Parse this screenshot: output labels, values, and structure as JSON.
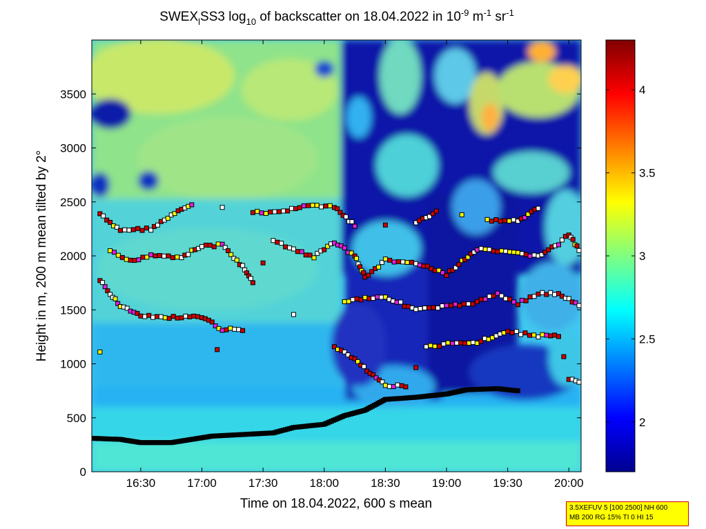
{
  "chart_data": {
    "type": "heatmap",
    "title_parts": {
      "a": "SWEX",
      "a_sub": "l",
      "b": "SS3 log",
      "b_sub": "10",
      "c": " of backscatter on 18.04.2022 in 10",
      "c_sup": "-9",
      "d": " m",
      "d_sup": "-1",
      "e": " sr",
      "e_sup": "-1"
    },
    "xlabel": "Time on 18.04.2022, 600 s mean",
    "ylabel": "Height in m, 200 m mean tilted by 2°",
    "xlim": [
      "16:06",
      "20:06"
    ],
    "ylim": [
      0,
      4000
    ],
    "x_ticks": [
      "16:30",
      "17:00",
      "17:30",
      "18:00",
      "18:30",
      "19:00",
      "19:30",
      "20:00"
    ],
    "y_ticks": [
      0,
      500,
      1000,
      1500,
      2000,
      2500,
      3000,
      3500
    ],
    "colorbar": {
      "range": [
        1.7,
        4.3
      ],
      "ticks": [
        "2",
        "2.5",
        "3",
        "3.5",
        "4"
      ],
      "colormap": "jet"
    },
    "colors": {
      "marker_red": "#cc0000",
      "marker_yellow": "#ffff00",
      "marker_magenta": "#e020e0",
      "marker_white": "#ffffff",
      "marker_black": "#000000"
    },
    "series": [
      {
        "marker": "boundary-layer-line",
        "color": "black",
        "points": [
          [
            "16:06",
            310
          ],
          [
            "16:20",
            300
          ],
          [
            "16:30",
            270
          ],
          [
            "16:45",
            270
          ],
          [
            "16:55",
            300
          ],
          [
            "17:05",
            330
          ],
          [
            "17:20",
            345
          ],
          [
            "17:35",
            360
          ],
          [
            "17:45",
            410
          ],
          [
            "18:00",
            440
          ],
          [
            "18:10",
            520
          ],
          [
            "18:20",
            570
          ],
          [
            "18:30",
            670
          ],
          [
            "18:45",
            690
          ],
          [
            "19:00",
            720
          ],
          [
            "19:10",
            760
          ],
          [
            "19:25",
            770
          ],
          [
            "19:35",
            750
          ]
        ]
      },
      {
        "marker": "layer-2400",
        "color": "mixed",
        "points": [
          [
            "16:10",
            2390
          ],
          [
            "16:15",
            2300
          ],
          [
            "16:20",
            2240
          ],
          [
            "16:35",
            2250
          ],
          [
            "16:45",
            2370
          ],
          [
            "16:55",
            2480
          ],
          [
            "17:25",
            2400
          ],
          [
            "17:40",
            2410
          ],
          [
            "17:50",
            2470
          ],
          [
            "18:05",
            2450
          ],
          [
            "18:15",
            2280
          ],
          [
            "18:45",
            2300
          ],
          [
            "18:55",
            2410
          ],
          [
            "19:20",
            2330
          ],
          [
            "19:35",
            2320
          ],
          [
            "19:45",
            2440
          ]
        ]
      },
      {
        "marker": "layer-2000",
        "color": "mixed",
        "points": [
          [
            "16:15",
            2040
          ],
          [
            "16:25",
            1950
          ],
          [
            "16:35",
            2010
          ],
          [
            "16:50",
            1990
          ],
          [
            "17:00",
            2090
          ],
          [
            "17:10",
            2100
          ],
          [
            "17:20",
            1900
          ],
          [
            "17:25",
            1750
          ],
          [
            "17:35",
            2140
          ],
          [
            "17:45",
            2060
          ],
          [
            "17:55",
            1990
          ],
          [
            "18:05",
            2130
          ],
          [
            "18:15",
            2000
          ],
          [
            "18:20",
            1800
          ],
          [
            "18:30",
            1960
          ],
          [
            "18:45",
            1930
          ],
          [
            "19:00",
            1830
          ],
          [
            "19:15",
            2060
          ],
          [
            "19:25",
            2040
          ],
          [
            "19:45",
            2000
          ],
          [
            "19:55",
            2110
          ],
          [
            "20:00",
            2200
          ],
          [
            "20:05",
            2050
          ]
        ]
      },
      {
        "marker": "layer-1500",
        "color": "mixed",
        "points": [
          [
            "16:10",
            1770
          ],
          [
            "16:20",
            1540
          ],
          [
            "16:30",
            1440
          ],
          [
            "16:40",
            1430
          ],
          [
            "17:00",
            1430
          ],
          [
            "17:10",
            1320
          ],
          [
            "17:20",
            1320
          ],
          [
            "18:10",
            1580
          ],
          [
            "18:20",
            1610
          ],
          [
            "18:30",
            1620
          ],
          [
            "18:45",
            1500
          ],
          [
            "19:00",
            1530
          ],
          [
            "19:15",
            1570
          ],
          [
            "19:25",
            1650
          ],
          [
            "19:35",
            1560
          ],
          [
            "19:45",
            1650
          ],
          [
            "19:55",
            1650
          ],
          [
            "20:05",
            1540
          ]
        ]
      },
      {
        "marker": "layer-1100",
        "color": "mixed",
        "points": [
          [
            "16:10",
            1100
          ],
          [
            "18:05",
            1160
          ],
          [
            "18:15",
            1040
          ],
          [
            "18:30",
            800
          ],
          [
            "18:40",
            790
          ],
          [
            "18:50",
            1150
          ],
          [
            "19:05",
            1200
          ],
          [
            "19:15",
            1200
          ],
          [
            "19:30",
            1300
          ],
          [
            "19:45",
            1260
          ],
          [
            "19:55",
            1260
          ],
          [
            "20:00",
            860
          ],
          [
            "20:05",
            830
          ]
        ]
      }
    ]
  },
  "info_box": {
    "line1": "3.5XEFUV 5 [100 2500] NH 600",
    "line2": "MB 200 RG 15% TI 0 HI 15"
  }
}
